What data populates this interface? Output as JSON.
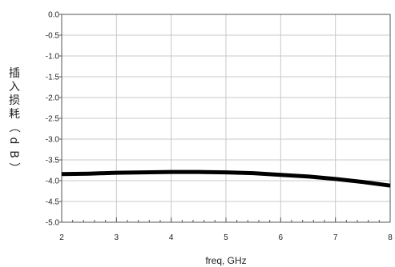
{
  "chart_data": {
    "type": "line",
    "title": "",
    "xlabel": "freq, GHz",
    "ylabel": "插入损耗（dB）",
    "xlim": [
      2,
      8
    ],
    "ylim": [
      -5.0,
      0.0
    ],
    "x_ticks": [
      2,
      3,
      4,
      5,
      6,
      7,
      8
    ],
    "x_tick_labels": [
      "2",
      "3",
      "4",
      "5",
      "6",
      "7",
      "8"
    ],
    "y_ticks": [
      0.0,
      -0.5,
      -1.0,
      -1.5,
      -2.0,
      -2.5,
      -3.0,
      -3.5,
      -4.0,
      -4.5,
      -5.0
    ],
    "y_tick_labels": [
      "0.0",
      "-0.5",
      "-1.0",
      "-1.5",
      "-2.0",
      "-2.5",
      "-3.0",
      "-3.5",
      "-4.0",
      "-4.5",
      "-5.0"
    ],
    "grid": true,
    "legend": "none",
    "series": [
      {
        "color": "#000000",
        "x": [
          2.0,
          2.5,
          3.0,
          3.5,
          4.0,
          4.5,
          5.0,
          5.5,
          6.0,
          6.5,
          7.0,
          7.5,
          8.0
        ],
        "y": [
          -3.84,
          -3.83,
          -3.81,
          -3.8,
          -3.79,
          -3.79,
          -3.8,
          -3.82,
          -3.86,
          -3.9,
          -3.96,
          -4.03,
          -4.12
        ]
      }
    ]
  }
}
